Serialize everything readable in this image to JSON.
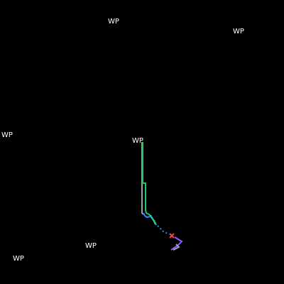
{
  "waypoints": [
    {
      "label": "WP"
    },
    {
      "label": "WP"
    },
    {
      "label": "WP"
    },
    {
      "label": "WP"
    },
    {
      "label": "WP"
    },
    {
      "label": "WP"
    }
  ],
  "colors": {
    "background": "#000000",
    "label": "#ffffff",
    "path_green": "#22c55e",
    "path_gray": "#9ca3af",
    "path_blue": "#3b82f6",
    "path_teal": "#2dd4bf",
    "path_purple": "#8b5cf6",
    "target_marker": "#ef4444"
  },
  "marker_icon": "x-marker-icon"
}
